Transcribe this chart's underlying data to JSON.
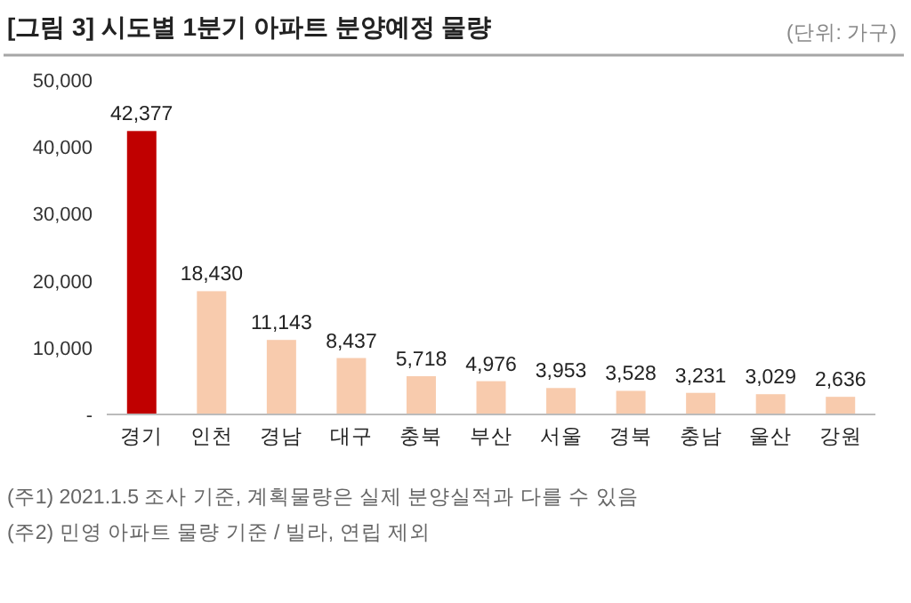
{
  "chart_data": {
    "type": "bar",
    "title": "[그림 3] 시도별 1분기 아파트 분양예정 물량",
    "annotations": [
      "(단위: 가구)",
      "(주1) 2021.1.5 조사 기준, 계획물량은 실제 분양실적과 다를 수 있음",
      "(주2) 민영 아파트 물량 기준 / 빌라, 연립 제외"
    ],
    "categories": [
      "경기",
      "인천",
      "경남",
      "대구",
      "충북",
      "부산",
      "서울",
      "경북",
      "충남",
      "울산",
      "강원"
    ],
    "values": [
      42377,
      18430,
      11143,
      8437,
      5718,
      4976,
      3953,
      3528,
      3231,
      3029,
      2636
    ],
    "colors": [
      "#c00000",
      "#f8cbad",
      "#f8cbad",
      "#f8cbad",
      "#f8cbad",
      "#f8cbad",
      "#f8cbad",
      "#f8cbad",
      "#f8cbad",
      "#f8cbad",
      "#f8cbad"
    ],
    "value_labels": [
      "42,377",
      "18,430",
      "11,143",
      "8,437",
      "5,718",
      "4,976",
      "3,953",
      "3,528",
      "3,231",
      "3,029",
      "2,636"
    ],
    "ylim": [
      0,
      50000
    ],
    "yticks": [
      {
        "value": 0,
        "label": "-"
      },
      {
        "value": 10000,
        "label": "10,000"
      },
      {
        "value": 20000,
        "label": "20,000"
      },
      {
        "value": 30000,
        "label": "30,000"
      },
      {
        "value": 40000,
        "label": "40,000"
      },
      {
        "value": 50000,
        "label": "50,000"
      }
    ],
    "grid": false
  }
}
